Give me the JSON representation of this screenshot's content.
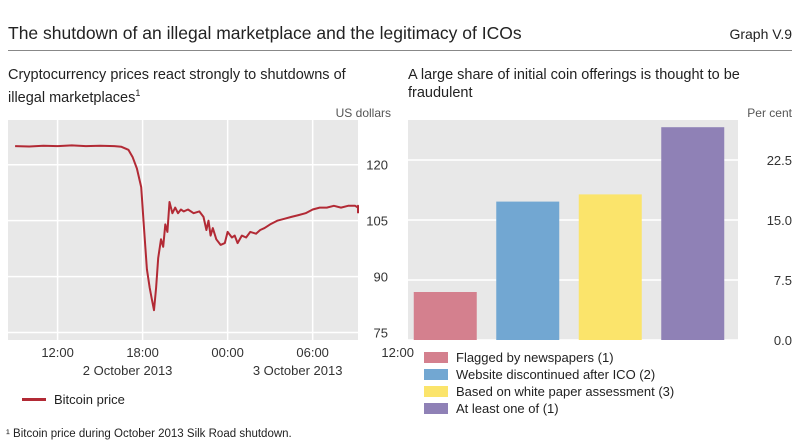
{
  "header": {
    "title": "The shutdown of an illegal marketplace and the legitimacy of ICOs",
    "graph_id": "Graph V.9"
  },
  "footnote": "¹  Bitcoin price during October 2013 Silk Road shutdown.",
  "chart_data": [
    {
      "type": "line",
      "title_line1": "Cryptocurrency prices react strongly to shutdowns of",
      "title_line2": "illegal marketplaces",
      "title_sup": "1",
      "ylabel": "US dollars",
      "ylim": [
        73,
        132
      ],
      "yticks": [
        75,
        90,
        105,
        120
      ],
      "xlim": [
        8.5,
        33.2
      ],
      "xticks": [
        {
          "x": 12,
          "label": "12:00"
        },
        {
          "x": 18,
          "label": "18:00"
        },
        {
          "x": 24,
          "label": "00:00"
        },
        {
          "x": 30,
          "label": "06:00"
        },
        {
          "x": 36,
          "label": "12:00"
        }
      ],
      "date_labels": [
        "2 October 2013",
        "3 October 2013"
      ],
      "grid": true,
      "series": [
        {
          "name": "Bitcoin price",
          "color": "#b22a35",
          "x_unit": "hours from 00:00 on 2 October 2013",
          "x": [
            9.0,
            10.0,
            11.0,
            12.0,
            13.0,
            14.0,
            15.0,
            16.0,
            16.5,
            17.0,
            17.3,
            17.6,
            17.9,
            18.1,
            18.3,
            18.5,
            18.65,
            18.8,
            18.95,
            19.1,
            19.3,
            19.45,
            19.6,
            19.75,
            19.9,
            20.1,
            20.3,
            20.5,
            20.7,
            20.9,
            21.2,
            21.6,
            22.0,
            22.3,
            22.5,
            22.65,
            22.8,
            22.95,
            23.2,
            23.5,
            23.8,
            24.0,
            24.3,
            24.5,
            24.7,
            25.0,
            25.3,
            25.6,
            26.0,
            26.3,
            26.6,
            27.0,
            27.5,
            28.0,
            28.5,
            29.0,
            29.5,
            30.0,
            30.5,
            31.0,
            31.5,
            32.0,
            32.5,
            33.0,
            33.5,
            34.0,
            34.5,
            35.0,
            35.5,
            36.0,
            36.5
          ],
          "y": [
            125.0,
            124.9,
            125.1,
            125.0,
            125.2,
            125.0,
            125.1,
            125.0,
            124.8,
            124.0,
            122.0,
            119.0,
            114.0,
            103.0,
            92.0,
            87.0,
            84.0,
            81.0,
            87.0,
            95.0,
            100.0,
            98.0,
            104.0,
            102.0,
            110.0,
            107.0,
            108.5,
            107.0,
            108.0,
            107.5,
            108.0,
            107.0,
            107.5,
            106.0,
            102.5,
            105.0,
            101.0,
            103.0,
            100.0,
            98.5,
            99.0,
            102.0,
            100.5,
            101.0,
            99.0,
            101.0,
            100.5,
            102.0,
            101.5,
            102.5,
            103.0,
            104.0,
            105.0,
            105.5,
            106.0,
            106.5,
            107.0,
            108.0,
            108.5,
            108.5,
            109.0,
            108.5,
            109.0,
            109.0,
            108.5,
            109.0,
            108.5,
            108.0,
            108.5,
            107.5,
            107.0
          ]
        }
      ]
    },
    {
      "type": "bar",
      "title_line1": "A large share of initial coin offerings is thought to be",
      "title_line2": "fraudulent",
      "ylabel": "Per cent",
      "ylim": [
        0,
        27.5
      ],
      "yticks": [
        "0.0",
        "7.5",
        "15.0",
        "22.5"
      ],
      "grid": true,
      "legend_position": "bottom",
      "categories": [
        "Flagged by newspapers (1)",
        "Website discontinued after ICO (2)",
        "Based on white paper assessment (3)",
        "At least one of (1)"
      ],
      "values": [
        6.0,
        17.3,
        18.2,
        26.6
      ],
      "colors": [
        "#d4808e",
        "#72a7d2",
        "#fbe46b",
        "#8f81b6"
      ]
    }
  ]
}
